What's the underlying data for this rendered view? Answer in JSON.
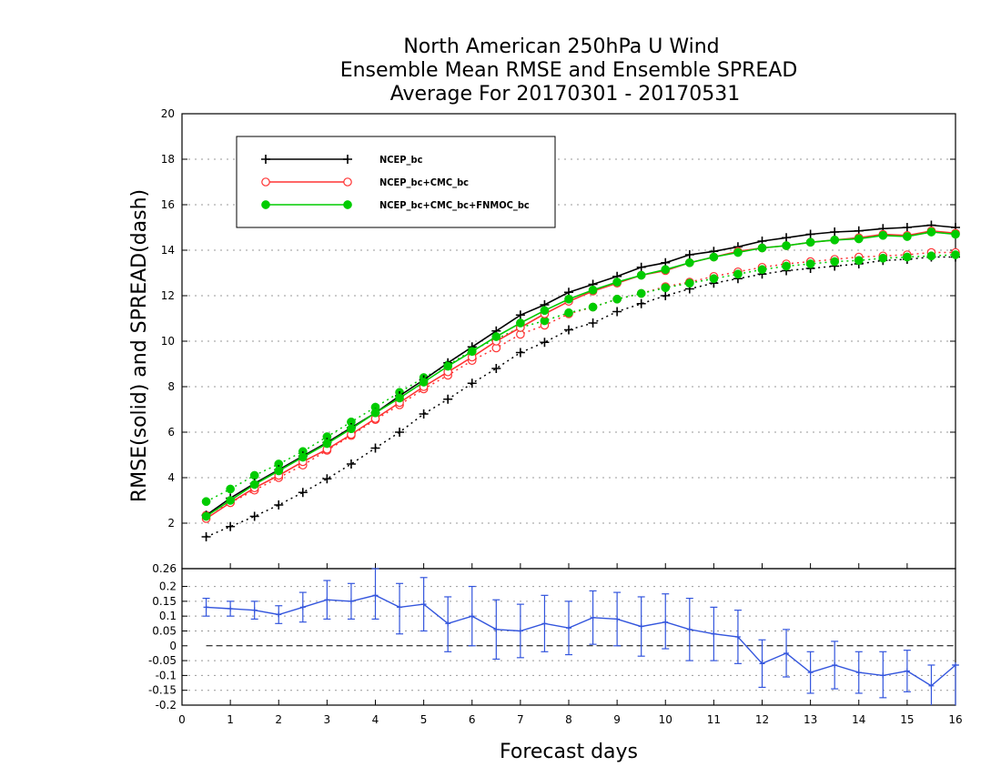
{
  "title_lines": [
    "North American 250hPa U Wind",
    "Ensemble Mean RMSE and Ensemble SPREAD",
    "Average For 20170301 - 20170531"
  ],
  "chart_data": [
    {
      "type": "line",
      "ylabel": "RMSE(solid) and SPREAD(dash)",
      "xlim": [
        0,
        16
      ],
      "ylim": [
        0,
        20
      ],
      "y_ticks": [
        2,
        4,
        6,
        8,
        10,
        12,
        14,
        16,
        18,
        20
      ],
      "grid": true,
      "legend_position": "top-left",
      "x": [
        0.5,
        1,
        1.5,
        2,
        2.5,
        3,
        3.5,
        4,
        4.5,
        5,
        5.5,
        6,
        6.5,
        7,
        7.5,
        8,
        8.5,
        9,
        9.5,
        10,
        10.5,
        11,
        11.5,
        12,
        12.5,
        13,
        13.5,
        14,
        14.5,
        15,
        15.5,
        16
      ],
      "series": [
        {
          "name": "NCEP_bc",
          "color": "#000000",
          "marker": "plus",
          "rmse": [
            2.35,
            3.1,
            3.75,
            4.35,
            4.95,
            5.55,
            6.2,
            6.85,
            7.6,
            8.3,
            9.05,
            9.75,
            10.45,
            11.15,
            11.6,
            12.15,
            12.5,
            12.85,
            13.25,
            13.45,
            13.8,
            13.95,
            14.15,
            14.4,
            14.55,
            14.7,
            14.8,
            14.85,
            14.95,
            15.0,
            15.1,
            15.0
          ],
          "spread": [
            1.4,
            1.85,
            2.3,
            2.8,
            3.35,
            3.95,
            4.6,
            5.3,
            6.0,
            6.8,
            7.45,
            8.15,
            8.8,
            9.5,
            9.95,
            10.5,
            10.8,
            11.3,
            11.65,
            12.0,
            12.3,
            12.55,
            12.75,
            12.95,
            13.1,
            13.2,
            13.3,
            13.4,
            13.55,
            13.6,
            13.7,
            13.7
          ]
        },
        {
          "name": "NCEP_bc+CMC_bc",
          "color": "#ff3333",
          "marker": "open-circle",
          "rmse": [
            2.2,
            2.9,
            3.55,
            4.1,
            4.7,
            5.25,
            5.9,
            6.6,
            7.3,
            8.0,
            8.65,
            9.3,
            10.0,
            10.6,
            11.2,
            11.75,
            12.2,
            12.55,
            12.9,
            13.1,
            13.45,
            13.7,
            13.95,
            14.1,
            14.2,
            14.35,
            14.45,
            14.55,
            14.7,
            14.65,
            14.85,
            14.75
          ],
          "spread": [
            2.35,
            2.9,
            3.45,
            4.0,
            4.55,
            5.2,
            5.85,
            6.55,
            7.2,
            7.9,
            8.5,
            9.15,
            9.7,
            10.3,
            10.7,
            11.2,
            11.5,
            11.85,
            12.1,
            12.4,
            12.6,
            12.85,
            13.05,
            13.25,
            13.4,
            13.5,
            13.6,
            13.7,
            13.75,
            13.8,
            13.9,
            13.9
          ]
        },
        {
          "name": "NCEP_bc+CMC_bc+FNMOC_bc",
          "color": "#00cc00",
          "marker": "filled-circle",
          "rmse": [
            2.3,
            3.0,
            3.7,
            4.3,
            4.9,
            5.5,
            6.15,
            6.85,
            7.5,
            8.2,
            8.9,
            9.55,
            10.2,
            10.8,
            11.35,
            11.85,
            12.25,
            12.6,
            12.9,
            13.15,
            13.45,
            13.7,
            13.9,
            14.1,
            14.2,
            14.35,
            14.45,
            14.5,
            14.65,
            14.6,
            14.8,
            14.7
          ],
          "spread": [
            2.95,
            3.5,
            4.1,
            4.6,
            5.15,
            5.8,
            6.45,
            7.1,
            7.75,
            8.4,
            8.95,
            9.6,
            10.1,
            10.6,
            10.9,
            11.25,
            11.5,
            11.85,
            12.1,
            12.35,
            12.55,
            12.75,
            12.95,
            13.15,
            13.3,
            13.4,
            13.5,
            13.55,
            13.65,
            13.7,
            13.75,
            13.8
          ]
        }
      ]
    },
    {
      "type": "line",
      "xlabel": "Forecast days",
      "xlim": [
        0,
        16
      ],
      "ylim": [
        -0.2,
        0.26
      ],
      "x_ticks": [
        0,
        1,
        2,
        3,
        4,
        5,
        6,
        7,
        8,
        9,
        10,
        11,
        12,
        13,
        14,
        15,
        16
      ],
      "y_ticks": [
        -0.2,
        -0.15,
        -0.1,
        -0.05,
        0,
        0.05,
        0.1,
        0.15,
        0.2,
        0.26
      ],
      "y_tick_labels": [
        "-0.2",
        "-0.15",
        "-0.1",
        "-0.05",
        "0",
        "0.05",
        "0.1",
        "0.15",
        "0.2",
        "0.26"
      ],
      "grid": true,
      "zero_line": true,
      "series": [
        {
          "color": "#3355dd",
          "x": [
            0.5,
            1,
            1.5,
            2,
            2.5,
            3,
            3.5,
            4,
            4.5,
            5,
            5.5,
            6,
            6.5,
            7,
            7.5,
            8,
            8.5,
            9,
            9.5,
            10,
            10.5,
            11,
            11.5,
            12,
            12.5,
            13,
            13.5,
            14,
            14.5,
            15,
            15.5,
            16
          ],
          "values": [
            0.13,
            0.125,
            0.12,
            0.105,
            0.13,
            0.155,
            0.15,
            0.17,
            0.13,
            0.14,
            0.075,
            0.1,
            0.055,
            0.05,
            0.075,
            0.06,
            0.095,
            0.09,
            0.065,
            0.08,
            0.055,
            0.04,
            0.03,
            -0.06,
            -0.025,
            -0.09,
            -0.065,
            -0.09,
            -0.1,
            -0.085,
            -0.135,
            -0.065
          ],
          "error_low": [
            0.1,
            0.1,
            0.09,
            0.075,
            0.08,
            0.09,
            0.09,
            0.09,
            0.04,
            0.05,
            -0.02,
            0.0,
            -0.045,
            -0.04,
            -0.02,
            -0.03,
            0.005,
            0.0,
            -0.035,
            -0.01,
            -0.05,
            -0.05,
            -0.06,
            -0.14,
            -0.105,
            -0.16,
            -0.145,
            -0.16,
            -0.175,
            -0.155,
            -0.21,
            -0.21
          ],
          "error_high": [
            0.16,
            0.15,
            0.15,
            0.135,
            0.18,
            0.22,
            0.21,
            0.26,
            0.21,
            0.23,
            0.165,
            0.2,
            0.155,
            0.14,
            0.17,
            0.15,
            0.185,
            0.18,
            0.165,
            0.175,
            0.16,
            0.13,
            0.12,
            0.02,
            0.055,
            -0.02,
            0.015,
            -0.02,
            -0.02,
            -0.015,
            -0.065,
            -0.065
          ]
        }
      ]
    }
  ]
}
